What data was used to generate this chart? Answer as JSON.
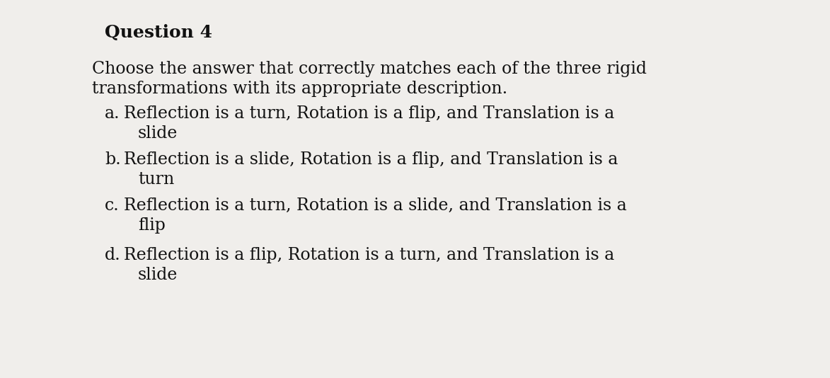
{
  "title": "Question 4",
  "background_color": "#f0eeeb",
  "text_color": "#111111",
  "question_line1": "Choose the answer that correctly matches each of the three rigid",
  "question_line2": "transformations with its appropriate description.",
  "options": [
    {
      "label": "a.",
      "line1": "Reflection is a turn, Rotation is a flip, and Translation is a",
      "line2": "slide"
    },
    {
      "label": "b.",
      "line1": "Reflection is a slide, Rotation is a flip, and Translation is a",
      "line2": "turn"
    },
    {
      "label": "c.",
      "line1": "Reflection is a turn, Rotation is a slide, and Translation is a",
      "line2": "flip"
    },
    {
      "label": "d.",
      "line1": "Reflection is a flip, Rotation is a turn, and Translation is a",
      "line2": "slide"
    }
  ],
  "title_fontsize": 18,
  "question_fontsize": 17,
  "option_fontsize": 17,
  "fig_width": 11.73,
  "fig_height": 5.34
}
